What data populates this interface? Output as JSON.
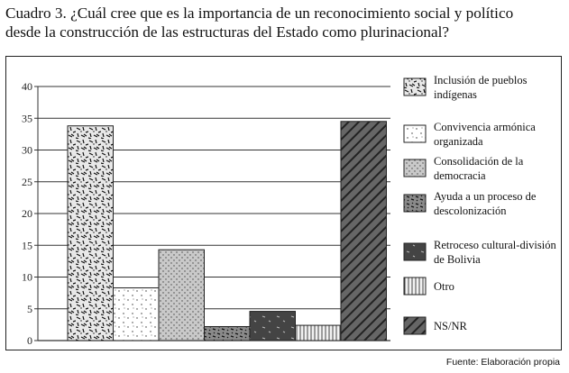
{
  "caption": {
    "line1": "Cuadro 3. ¿Cuál cree que es la importancia de un reconocimiento social y político",
    "line2": "desde la construcción de las estructuras del Estado como plurinacional?"
  },
  "source": "Fuente: Elaboración propia",
  "chart_data": {
    "type": "bar",
    "title": "",
    "xlabel": "",
    "ylabel": "",
    "ylim": [
      0,
      40
    ],
    "yticks": [
      0,
      5,
      10,
      15,
      20,
      25,
      30,
      35,
      40
    ],
    "grid": true,
    "legend_position": "right",
    "series": [
      {
        "name": "Inclusión de pueblos indígenas",
        "value": 33.8,
        "pattern": "dashes-dense",
        "legend_lines": [
          "Inclusión de pueblos",
          "indígenas"
        ]
      },
      {
        "name": "Convivencia armónica organizada",
        "value": 8.3,
        "pattern": "dots-sparse",
        "legend_lines": [
          "Convivencia armónica",
          "organizada"
        ]
      },
      {
        "name": "Consolidación de la democracia",
        "value": 14.3,
        "pattern": "dots-dense",
        "legend_lines": [
          "Consolidación de la",
          "democracia"
        ]
      },
      {
        "name": "Ayuda a un proceso de descolonización",
        "value": 2.2,
        "pattern": "dashes-dark",
        "legend_lines": [
          "Ayuda a un proceso de",
          "descolonización"
        ]
      },
      {
        "name": "Retroceso cultural-división de Bolivia",
        "value": 4.6,
        "pattern": "dark-solid",
        "legend_lines": [
          "Retroceso cultural-división",
          "de Bolivia"
        ]
      },
      {
        "name": "Otro",
        "value": 2.4,
        "pattern": "vertical-lines",
        "legend_lines": [
          "Otro"
        ]
      },
      {
        "name": "NS/NR",
        "value": 34.5,
        "pattern": "diagonal-dark",
        "legend_lines": [
          "NS/NR"
        ]
      }
    ]
  }
}
